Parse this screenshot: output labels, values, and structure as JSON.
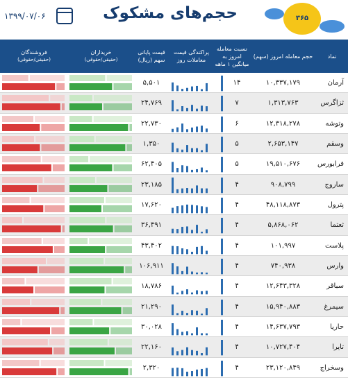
{
  "header": {
    "title": "حجم‌های مشکوک",
    "date": "۱۳۹۹/۰۷/۰۶",
    "logo": "۳۶۵ رهآورد"
  },
  "table": {
    "columns": [
      "نماد",
      "حجم معامله امروز (سهم)",
      "نسبت معامله امروز به میانگین ۱ ماهه",
      "پراکندگی قیمت معاملات روز",
      "قیمت پایانی سهم (ریال)",
      "خریداران",
      "فروشندگان"
    ],
    "subheader": "(حقیقی/حقوقی)",
    "rows": [
      [
        "آرمان",
        "۱۰,۳۳۷,۱۷۹",
        "۱۴",
        "۵,۵۰۱"
      ],
      [
        "ثزاگرس",
        "۱,۳۱۳,۷۶۳",
        "۷",
        "۲۴,۷۶۹"
      ],
      [
        "وتوشه",
        "۱۲,۳۱۸,۲۷۸",
        "۶",
        "۲۲,۷۳۰"
      ],
      [
        "وسقم",
        "۲,۶۵۳,۱۴۷",
        "۵",
        "۱,۳۵۰"
      ],
      [
        "فرابورس",
        "۱۹,۵۱۰,۶۷۶",
        "۵",
        "۶۲,۴۰۵"
      ],
      [
        "ساروج",
        "۹۰۸,۷۹۹",
        "۴",
        "۲۳,۱۸۵"
      ],
      [
        "پترول",
        "۴۸,۱۱۸,۸۷۳",
        "۴",
        "۱۷,۶۲۰"
      ],
      [
        "ثعتما",
        "۵,۸۶۸,۰۶۲",
        "۴",
        "۳۶,۴۹۱"
      ],
      [
        "پلاست",
        "۱۰۱,۹۹۷",
        "۴",
        "۴۳,۴۰۲"
      ],
      [
        "وارس",
        "۷۴۰,۹۳۸",
        "۴",
        "۱۰۶,۹۱۱"
      ],
      [
        "سباقر",
        "۱۲,۶۴۳,۳۲۸",
        "۴",
        "۱۸,۷۸۶"
      ],
      [
        "سیمرغ",
        "۱۵,۹۴۰,۸۸۳",
        "۴",
        "۲۱,۲۹۰"
      ],
      [
        "حاریا",
        "۱۴,۶۳۷,۷۹۳",
        "۴",
        "۳۰,۰۲۸"
      ],
      [
        "تایرا",
        "۱۰,۷۲۷,۴۰۴",
        "۴",
        "۲۲,۱۶۰"
      ],
      [
        "وسخراج",
        "۲۳,۱۲۰,۸۴۹",
        "۴",
        "۲,۳۲۰"
      ]
    ]
  }
}
